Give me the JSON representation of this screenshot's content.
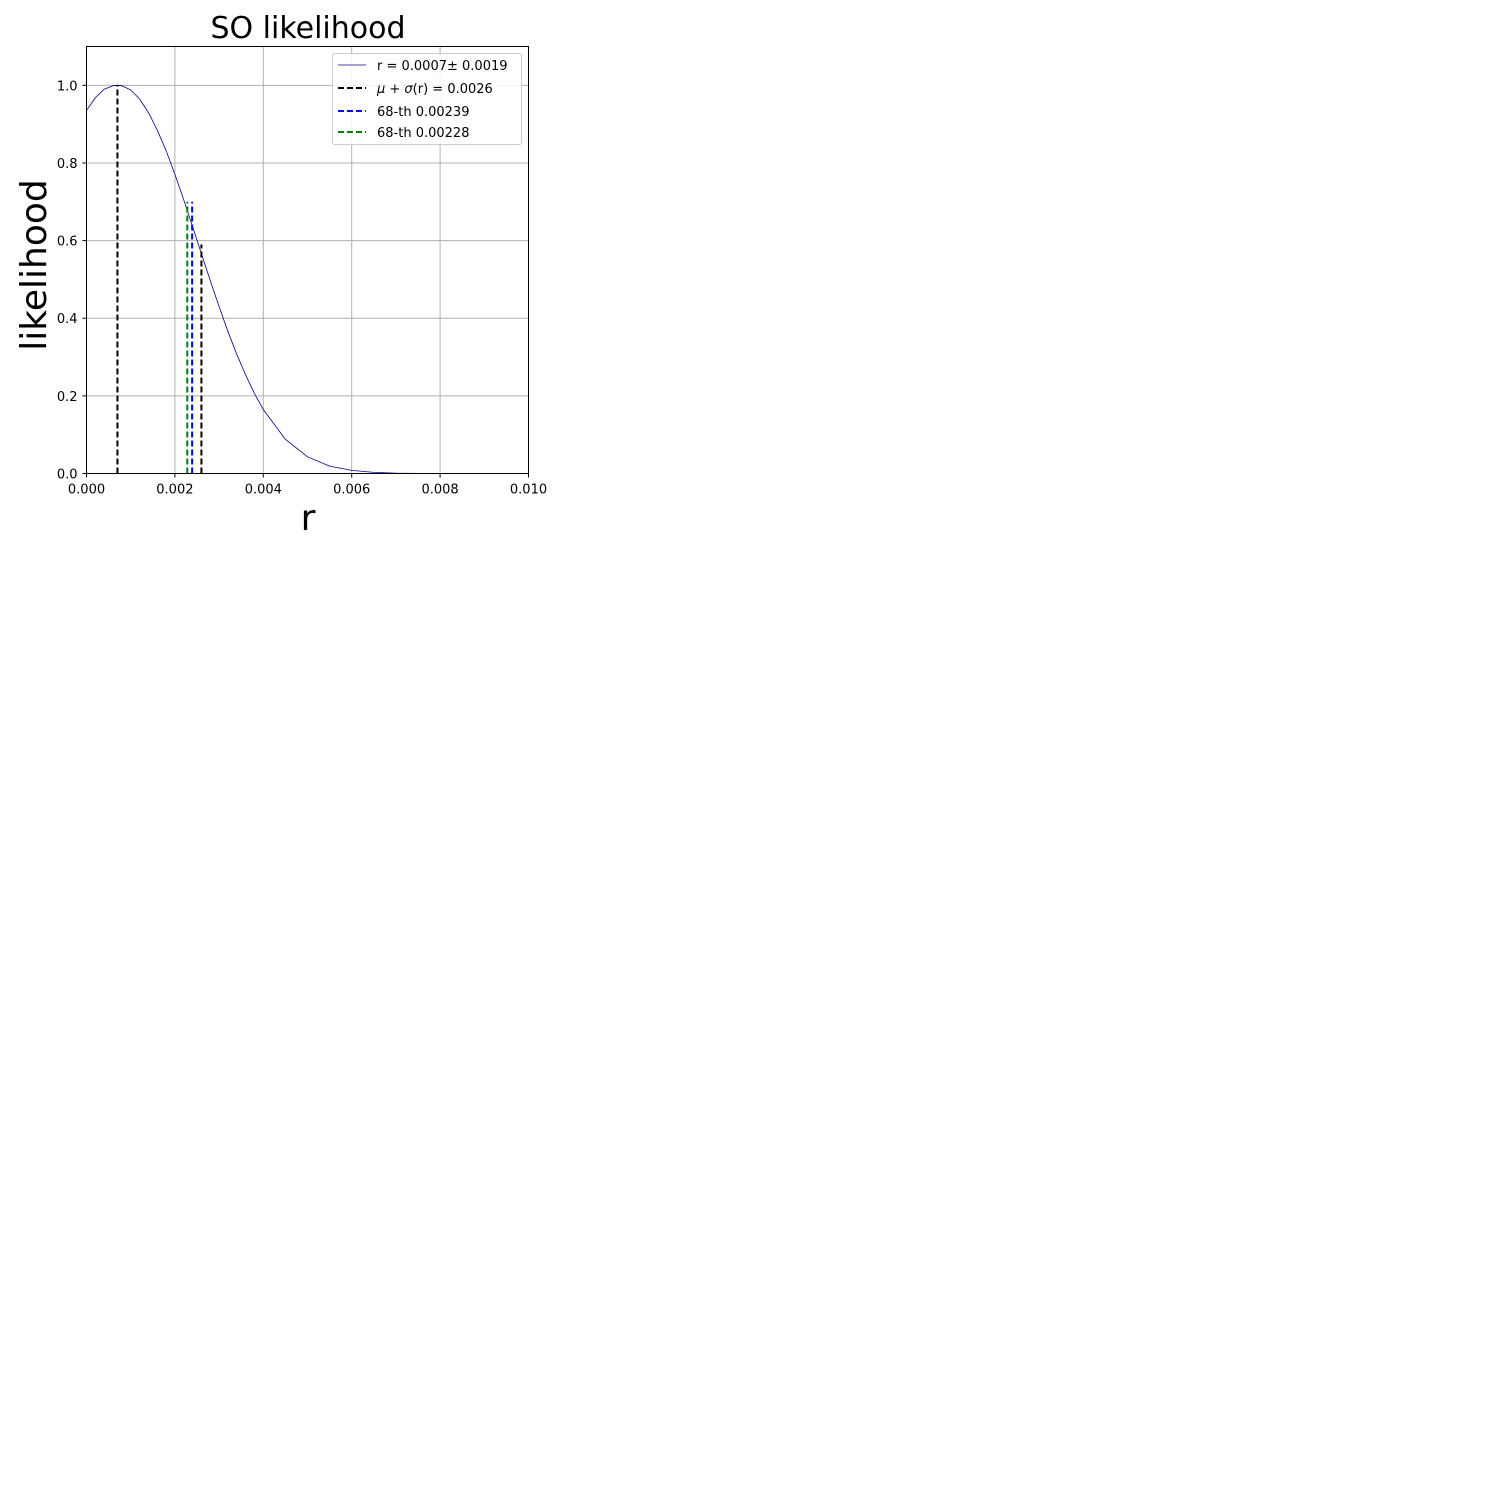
{
  "chart_data": {
    "type": "line",
    "title": "SO likelihood",
    "xlabel": "r",
    "ylabel": "likelihood",
    "xlim": [
      0,
      0.01
    ],
    "ylim": [
      0,
      1.1
    ],
    "xticks": [
      0,
      0.002,
      0.004,
      0.006,
      0.008,
      0.01
    ],
    "xtick_labels": [
      "0.000",
      "0.002",
      "0.004",
      "0.006",
      "0.008",
      "0.010"
    ],
    "yticks": [
      0,
      0.2,
      0.4,
      0.6,
      0.8,
      1.0
    ],
    "ytick_labels": [
      "0.0",
      "0.2",
      "0.4",
      "0.6",
      "0.8",
      "1.0"
    ],
    "grid": true,
    "legend_position": "top-right",
    "curve": {
      "name": "r = 0.0007± 0.0019",
      "color": "#00008b",
      "x": [
        0,
        0.0002,
        0.0004,
        0.0006,
        0.0007,
        0.0008,
        0.001,
        0.0012,
        0.0014,
        0.0016,
        0.0018,
        0.002,
        0.0022,
        0.0024,
        0.0026,
        0.0028,
        0.003,
        0.0032,
        0.0034,
        0.0036,
        0.0038,
        0.004,
        0.0045,
        0.005,
        0.0055,
        0.006,
        0.0065,
        0.007,
        0.0075,
        0.008,
        0.009,
        0.01
      ],
      "y": [
        0.935,
        0.968,
        0.99,
        0.999,
        1.0,
        0.999,
        0.988,
        0.965,
        0.93,
        0.885,
        0.832,
        0.771,
        0.705,
        0.636,
        0.566,
        0.497,
        0.43,
        0.366,
        0.307,
        0.254,
        0.206,
        0.165,
        0.088,
        0.043,
        0.019,
        0.008,
        0.003,
        0.001,
        0.0003,
        0.0001,
        0.0,
        0.0
      ]
    },
    "vlines": [
      {
        "x": 0.0007,
        "y": 1.0,
        "color": "#000000",
        "legend": false
      },
      {
        "x": 0.0026,
        "y": 0.59,
        "color": "#000000",
        "legend": "$\\mu + \\sigma$(r) = 0.0026"
      },
      {
        "x": 0.00239,
        "y": 0.7,
        "color": "#0000ff",
        "legend": "68-th 0.00239"
      },
      {
        "x": 0.00228,
        "y": 0.7,
        "color": "#008000",
        "legend": "68-th 0.00228"
      }
    ],
    "legend": [
      {
        "label": "r = 0.0007± 0.0019",
        "color": "#00008b",
        "style": "solid"
      },
      {
        "label_prefix": "μ + σ",
        "label_suffix": "(r) = 0.0026",
        "color": "#000000",
        "style": "dashed"
      },
      {
        "label": "68-th 0.00239",
        "color": "#0000ff",
        "style": "dashed"
      },
      {
        "label": "68-th 0.00228",
        "color": "#008000",
        "style": "dashed"
      }
    ]
  }
}
